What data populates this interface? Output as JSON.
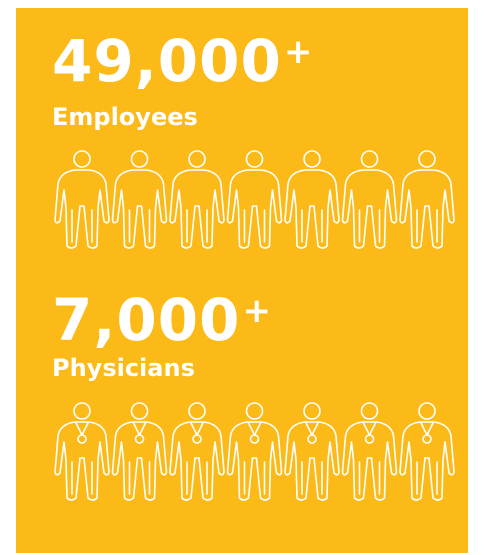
{
  "stats": [
    {
      "number": "49,000",
      "suffix": "+",
      "label": "Employees",
      "icon": "person-icon",
      "icon_count": 7
    },
    {
      "number": "7,000",
      "suffix": "+",
      "label": "Physicians",
      "icon": "physician-icon",
      "icon_count": 7
    }
  ],
  "colors": {
    "background": "#fbba17",
    "foreground": "#ffffff"
  }
}
